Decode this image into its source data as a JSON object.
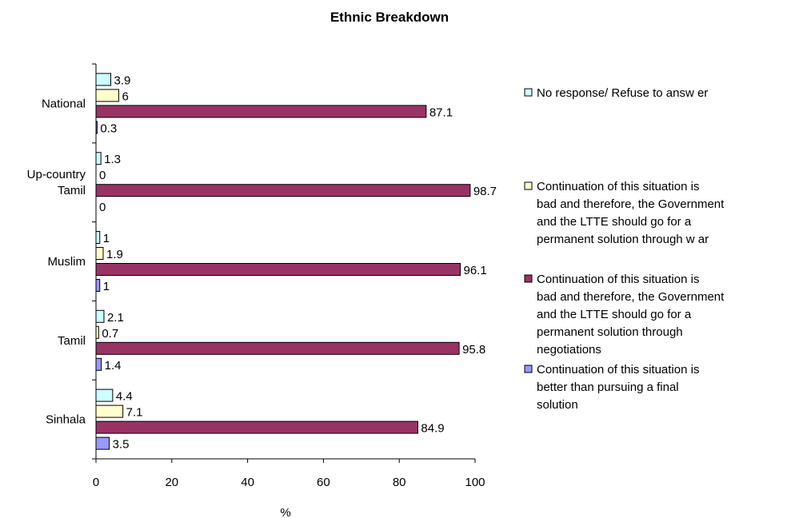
{
  "chart_data": {
    "type": "bar",
    "orientation": "horizontal",
    "title": "Ethnic Breakdown",
    "xlabel": "%",
    "ylabel": "",
    "xlim": [
      0,
      100
    ],
    "xticks": [
      "0",
      "20",
      "40",
      "60",
      "80",
      "100"
    ],
    "categories": [
      "National",
      "Up-country Tamil",
      "Muslim",
      "Tamil",
      "Sinhala"
    ],
    "series": [
      {
        "name": "No response/ Refuse to answ er",
        "color": "#ccffff",
        "values": [
          3.9,
          1.3,
          1,
          2.1,
          4.4
        ]
      },
      {
        "name": "Continuation of this situation is bad and therefore, the Government and the LTTE should go for a permanent solution through w ar",
        "color": "#ffffcc",
        "values": [
          6,
          0,
          1.9,
          0.7,
          7.1
        ]
      },
      {
        "name": "Continuation of this situation is bad and therefore, the Government and the LTTE should go for a permanent solution through negotiations",
        "color": "#993366",
        "values": [
          87.1,
          98.7,
          96.1,
          95.8,
          84.9
        ]
      },
      {
        "name": "Continuation of this situation is better than pursuing a final solution",
        "color": "#9999ff",
        "values": [
          0.3,
          0,
          1,
          1.4,
          3.5
        ]
      }
    ],
    "grid": false,
    "legend_position": "right"
  }
}
